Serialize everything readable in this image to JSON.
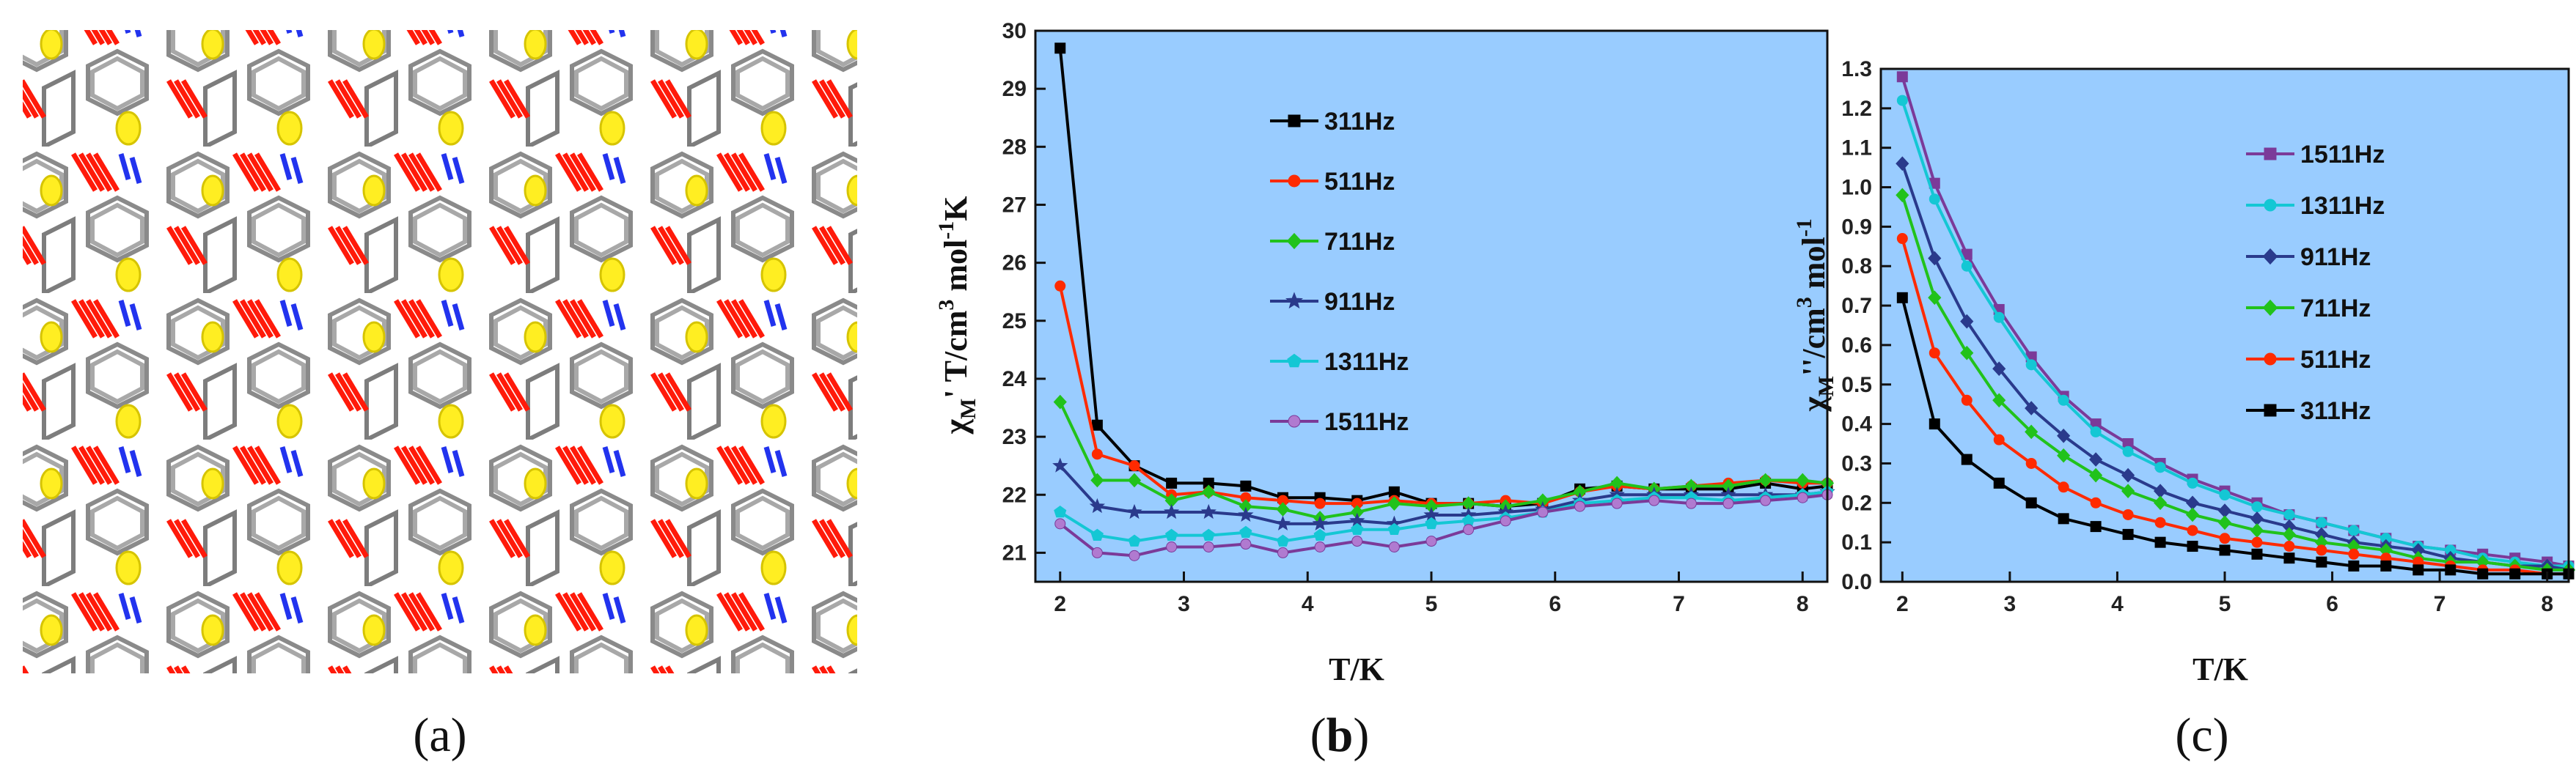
{
  "panels": {
    "a": "a",
    "b": "b",
    "c": "c"
  },
  "chart_data": [
    {
      "panel": "b",
      "type": "line",
      "title": "",
      "xlabel": "T/K",
      "ylabel": "χM' T/cm3 mol-1K",
      "ylabel_parts": {
        "chi": "χ",
        "sub": "M",
        "prime": "'",
        "rest": " T/cm",
        "sup1": "3",
        "mol": " mol",
        "sup2": "-1",
        "end": "K"
      },
      "xlim": [
        1.8,
        8.2
      ],
      "ylim": [
        20.5,
        30
      ],
      "xticks": [
        2,
        3,
        4,
        5,
        6,
        7,
        8
      ],
      "yticks": [
        21,
        22,
        23,
        24,
        25,
        26,
        27,
        28,
        29,
        30
      ],
      "background": "#99ccff",
      "legend_position": "top-left",
      "x": [
        2.0,
        2.3,
        2.6,
        2.9,
        3.2,
        3.5,
        3.8,
        4.1,
        4.4,
        4.7,
        5.0,
        5.3,
        5.6,
        5.9,
        6.2,
        6.5,
        6.8,
        7.1,
        7.4,
        7.7,
        8.0,
        8.2
      ],
      "series": [
        {
          "name": "311Hz",
          "color": "#000000",
          "marker": "square",
          "values": [
            29.7,
            23.2,
            22.5,
            22.2,
            22.2,
            22.15,
            21.95,
            21.95,
            21.9,
            22.05,
            21.85,
            21.85,
            21.8,
            21.85,
            22.1,
            22.15,
            22.1,
            22.1,
            22.1,
            22.2,
            22.1,
            22.15
          ]
        },
        {
          "name": "511Hz",
          "color": "#ff2a00",
          "marker": "circle",
          "values": [
            25.6,
            22.7,
            22.5,
            22.0,
            22.05,
            21.95,
            21.9,
            21.85,
            21.85,
            21.9,
            21.85,
            21.85,
            21.9,
            21.85,
            22.05,
            22.15,
            22.1,
            22.15,
            22.2,
            22.25,
            22.2,
            22.2
          ]
        },
        {
          "name": "711Hz",
          "color": "#21c21b",
          "marker": "diamond",
          "values": [
            23.6,
            22.25,
            22.25,
            21.9,
            22.05,
            21.8,
            21.75,
            21.6,
            21.7,
            21.85,
            21.8,
            21.85,
            21.8,
            21.9,
            22.05,
            22.2,
            22.1,
            22.15,
            22.15,
            22.25,
            22.25,
            22.2
          ]
        },
        {
          "name": "911Hz",
          "color": "#2a3a8c",
          "marker": "star",
          "values": [
            22.5,
            21.8,
            21.7,
            21.7,
            21.7,
            21.65,
            21.5,
            21.5,
            21.55,
            21.5,
            21.65,
            21.65,
            21.7,
            21.75,
            21.9,
            22.0,
            22.0,
            22.0,
            22.0,
            22.0,
            22.0,
            22.05
          ]
        },
        {
          "name": "1311Hz",
          "color": "#14c7d4",
          "marker": "pentagon",
          "values": [
            21.7,
            21.3,
            21.2,
            21.3,
            21.3,
            21.35,
            21.2,
            21.3,
            21.4,
            21.4,
            21.5,
            21.55,
            21.6,
            21.7,
            21.85,
            21.9,
            21.95,
            21.95,
            21.9,
            21.95,
            22.0,
            22.05
          ]
        },
        {
          "name": "1511Hz",
          "color": "#7b3a99",
          "marker": "sphere",
          "values": [
            21.5,
            21.0,
            20.95,
            21.1,
            21.1,
            21.15,
            21.0,
            21.1,
            21.2,
            21.1,
            21.2,
            21.4,
            21.55,
            21.7,
            21.8,
            21.85,
            21.9,
            21.85,
            21.85,
            21.9,
            21.95,
            22.0
          ]
        }
      ]
    },
    {
      "panel": "c",
      "type": "line",
      "title": "",
      "xlabel": "T/K",
      "ylabel": "χM''/cm3 mol-1",
      "ylabel_parts": {
        "chi": "χ",
        "sub": "M",
        "prime": "''",
        "rest": "/cm",
        "sup1": "3",
        "mol": " mol",
        "sup2": "-1"
      },
      "xlim": [
        1.8,
        8.2
      ],
      "ylim": [
        0.0,
        1.3
      ],
      "xticks": [
        2,
        3,
        4,
        5,
        6,
        7,
        8
      ],
      "yticks": [
        0.0,
        0.1,
        0.2,
        0.3,
        0.4,
        0.5,
        0.6,
        0.7,
        0.8,
        0.9,
        1.0,
        1.1,
        1.2,
        1.3
      ],
      "background": "#99ccff",
      "legend_position": "top-center",
      "x": [
        2.0,
        2.3,
        2.6,
        2.9,
        3.2,
        3.5,
        3.8,
        4.1,
        4.4,
        4.7,
        5.0,
        5.3,
        5.6,
        5.9,
        6.2,
        6.5,
        6.8,
        7.1,
        7.4,
        7.7,
        8.0,
        8.2
      ],
      "series": [
        {
          "name": "1511Hz",
          "color": "#7b3a99",
          "marker": "square",
          "values": [
            1.28,
            1.01,
            0.83,
            0.69,
            0.57,
            0.47,
            0.4,
            0.35,
            0.3,
            0.26,
            0.23,
            0.2,
            0.17,
            0.15,
            0.13,
            0.11,
            0.09,
            0.08,
            0.07,
            0.06,
            0.05,
            0.04
          ]
        },
        {
          "name": "1311Hz",
          "color": "#14c7d4",
          "marker": "circle",
          "values": [
            1.22,
            0.97,
            0.8,
            0.67,
            0.55,
            0.46,
            0.38,
            0.33,
            0.29,
            0.25,
            0.22,
            0.19,
            0.17,
            0.15,
            0.13,
            0.11,
            0.09,
            0.08,
            0.06,
            0.05,
            0.04,
            0.04
          ]
        },
        {
          "name": "911Hz",
          "color": "#2a3a8c",
          "marker": "diamond",
          "values": [
            1.06,
            0.82,
            0.66,
            0.54,
            0.44,
            0.37,
            0.31,
            0.27,
            0.23,
            0.2,
            0.18,
            0.16,
            0.14,
            0.12,
            0.1,
            0.09,
            0.08,
            0.06,
            0.05,
            0.04,
            0.04,
            0.03
          ]
        },
        {
          "name": "711Hz",
          "color": "#21c21b",
          "marker": "diamond",
          "values": [
            0.98,
            0.72,
            0.58,
            0.46,
            0.38,
            0.32,
            0.27,
            0.23,
            0.2,
            0.17,
            0.15,
            0.13,
            0.12,
            0.1,
            0.09,
            0.08,
            0.06,
            0.05,
            0.05,
            0.04,
            0.03,
            0.03
          ]
        },
        {
          "name": "511Hz",
          "color": "#ff2a00",
          "marker": "circle",
          "values": [
            0.87,
            0.58,
            0.46,
            0.36,
            0.3,
            0.24,
            0.2,
            0.17,
            0.15,
            0.13,
            0.11,
            0.1,
            0.09,
            0.08,
            0.07,
            0.06,
            0.05,
            0.04,
            0.03,
            0.03,
            0.02,
            0.02
          ]
        },
        {
          "name": "311Hz",
          "color": "#000000",
          "marker": "square",
          "values": [
            0.72,
            0.4,
            0.31,
            0.25,
            0.2,
            0.16,
            0.14,
            0.12,
            0.1,
            0.09,
            0.08,
            0.07,
            0.06,
            0.05,
            0.04,
            0.04,
            0.03,
            0.03,
            0.02,
            0.02,
            0.02,
            0.02
          ]
        }
      ]
    }
  ]
}
